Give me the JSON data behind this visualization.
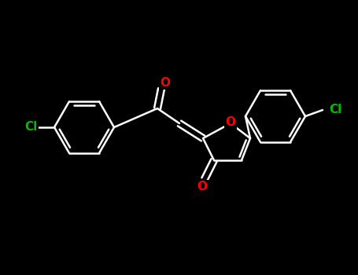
{
  "background_color": "#000000",
  "bond_color": "#ffffff",
  "bond_width": 1.8,
  "atom_colors": {
    "O": "#ff0000",
    "Cl": "#00bb00"
  },
  "font_size_O": 11,
  "font_size_Cl": 11,
  "title": ""
}
